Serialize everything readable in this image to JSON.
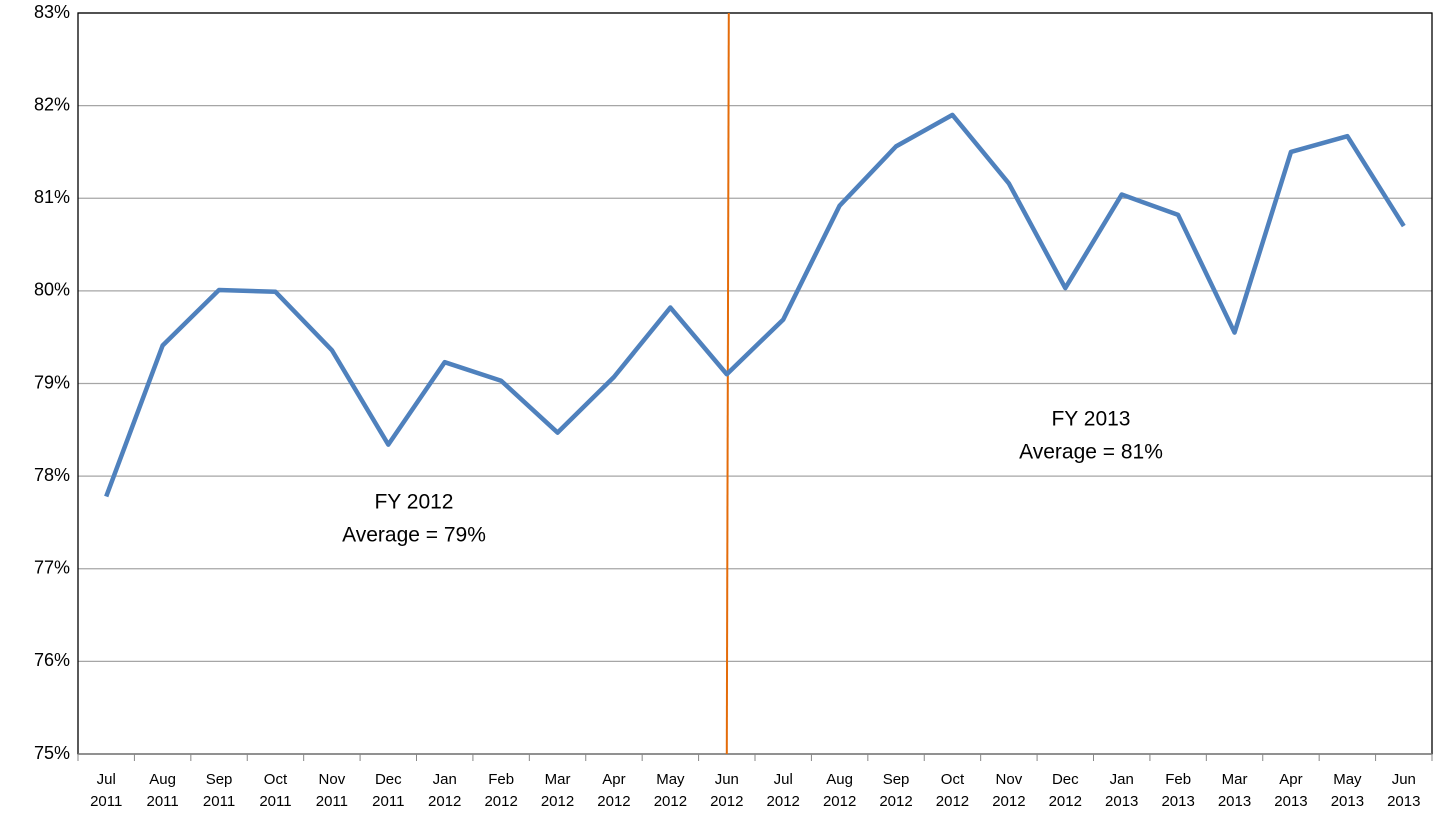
{
  "chart_data": {
    "type": "line",
    "categories": [
      "Jul 2011",
      "Aug 2011",
      "Sep 2011",
      "Oct 2011",
      "Nov 2011",
      "Dec 2011",
      "Jan 2012",
      "Feb 2012",
      "Mar 2012",
      "Apr 2012",
      "May 2012",
      "Jun 2012",
      "Jul 2012",
      "Aug 2012",
      "Sep 2012",
      "Oct 2012",
      "Nov 2012",
      "Dec 2012",
      "Jan 2013",
      "Feb 2013",
      "Mar 2013",
      "Apr 2013",
      "May 2013",
      "Jun 2013"
    ],
    "series": [
      {
        "color": "#4f81bd",
        "values": [
          77.78,
          79.41,
          80.01,
          79.99,
          79.36,
          78.34,
          79.23,
          79.03,
          78.47,
          79.07,
          79.82,
          79.1,
          79.69,
          80.92,
          81.56,
          81.9,
          81.16,
          80.03,
          81.04,
          80.82,
          79.55,
          81.5,
          81.67,
          80.7
        ]
      }
    ],
    "ylim": [
      75,
      83
    ],
    "yticks": [
      {
        "value": 75,
        "label": "75%"
      },
      {
        "value": 76,
        "label": "76%"
      },
      {
        "value": 77,
        "label": "77%"
      },
      {
        "value": 78,
        "label": "78%"
      },
      {
        "value": 79,
        "label": "79%"
      },
      {
        "value": 80,
        "label": "80%"
      },
      {
        "value": 81,
        "label": "81%"
      },
      {
        "value": 82,
        "label": "82%"
      },
      {
        "value": 83,
        "label": "83%"
      }
    ],
    "grid": true,
    "divider": {
      "category": "Jun 2012",
      "color": "#e46c0a"
    },
    "annotations": [
      [
        "FY 2012",
        "Average = 79%"
      ],
      [
        "FY 2013",
        "Average = 81%"
      ]
    ]
  }
}
